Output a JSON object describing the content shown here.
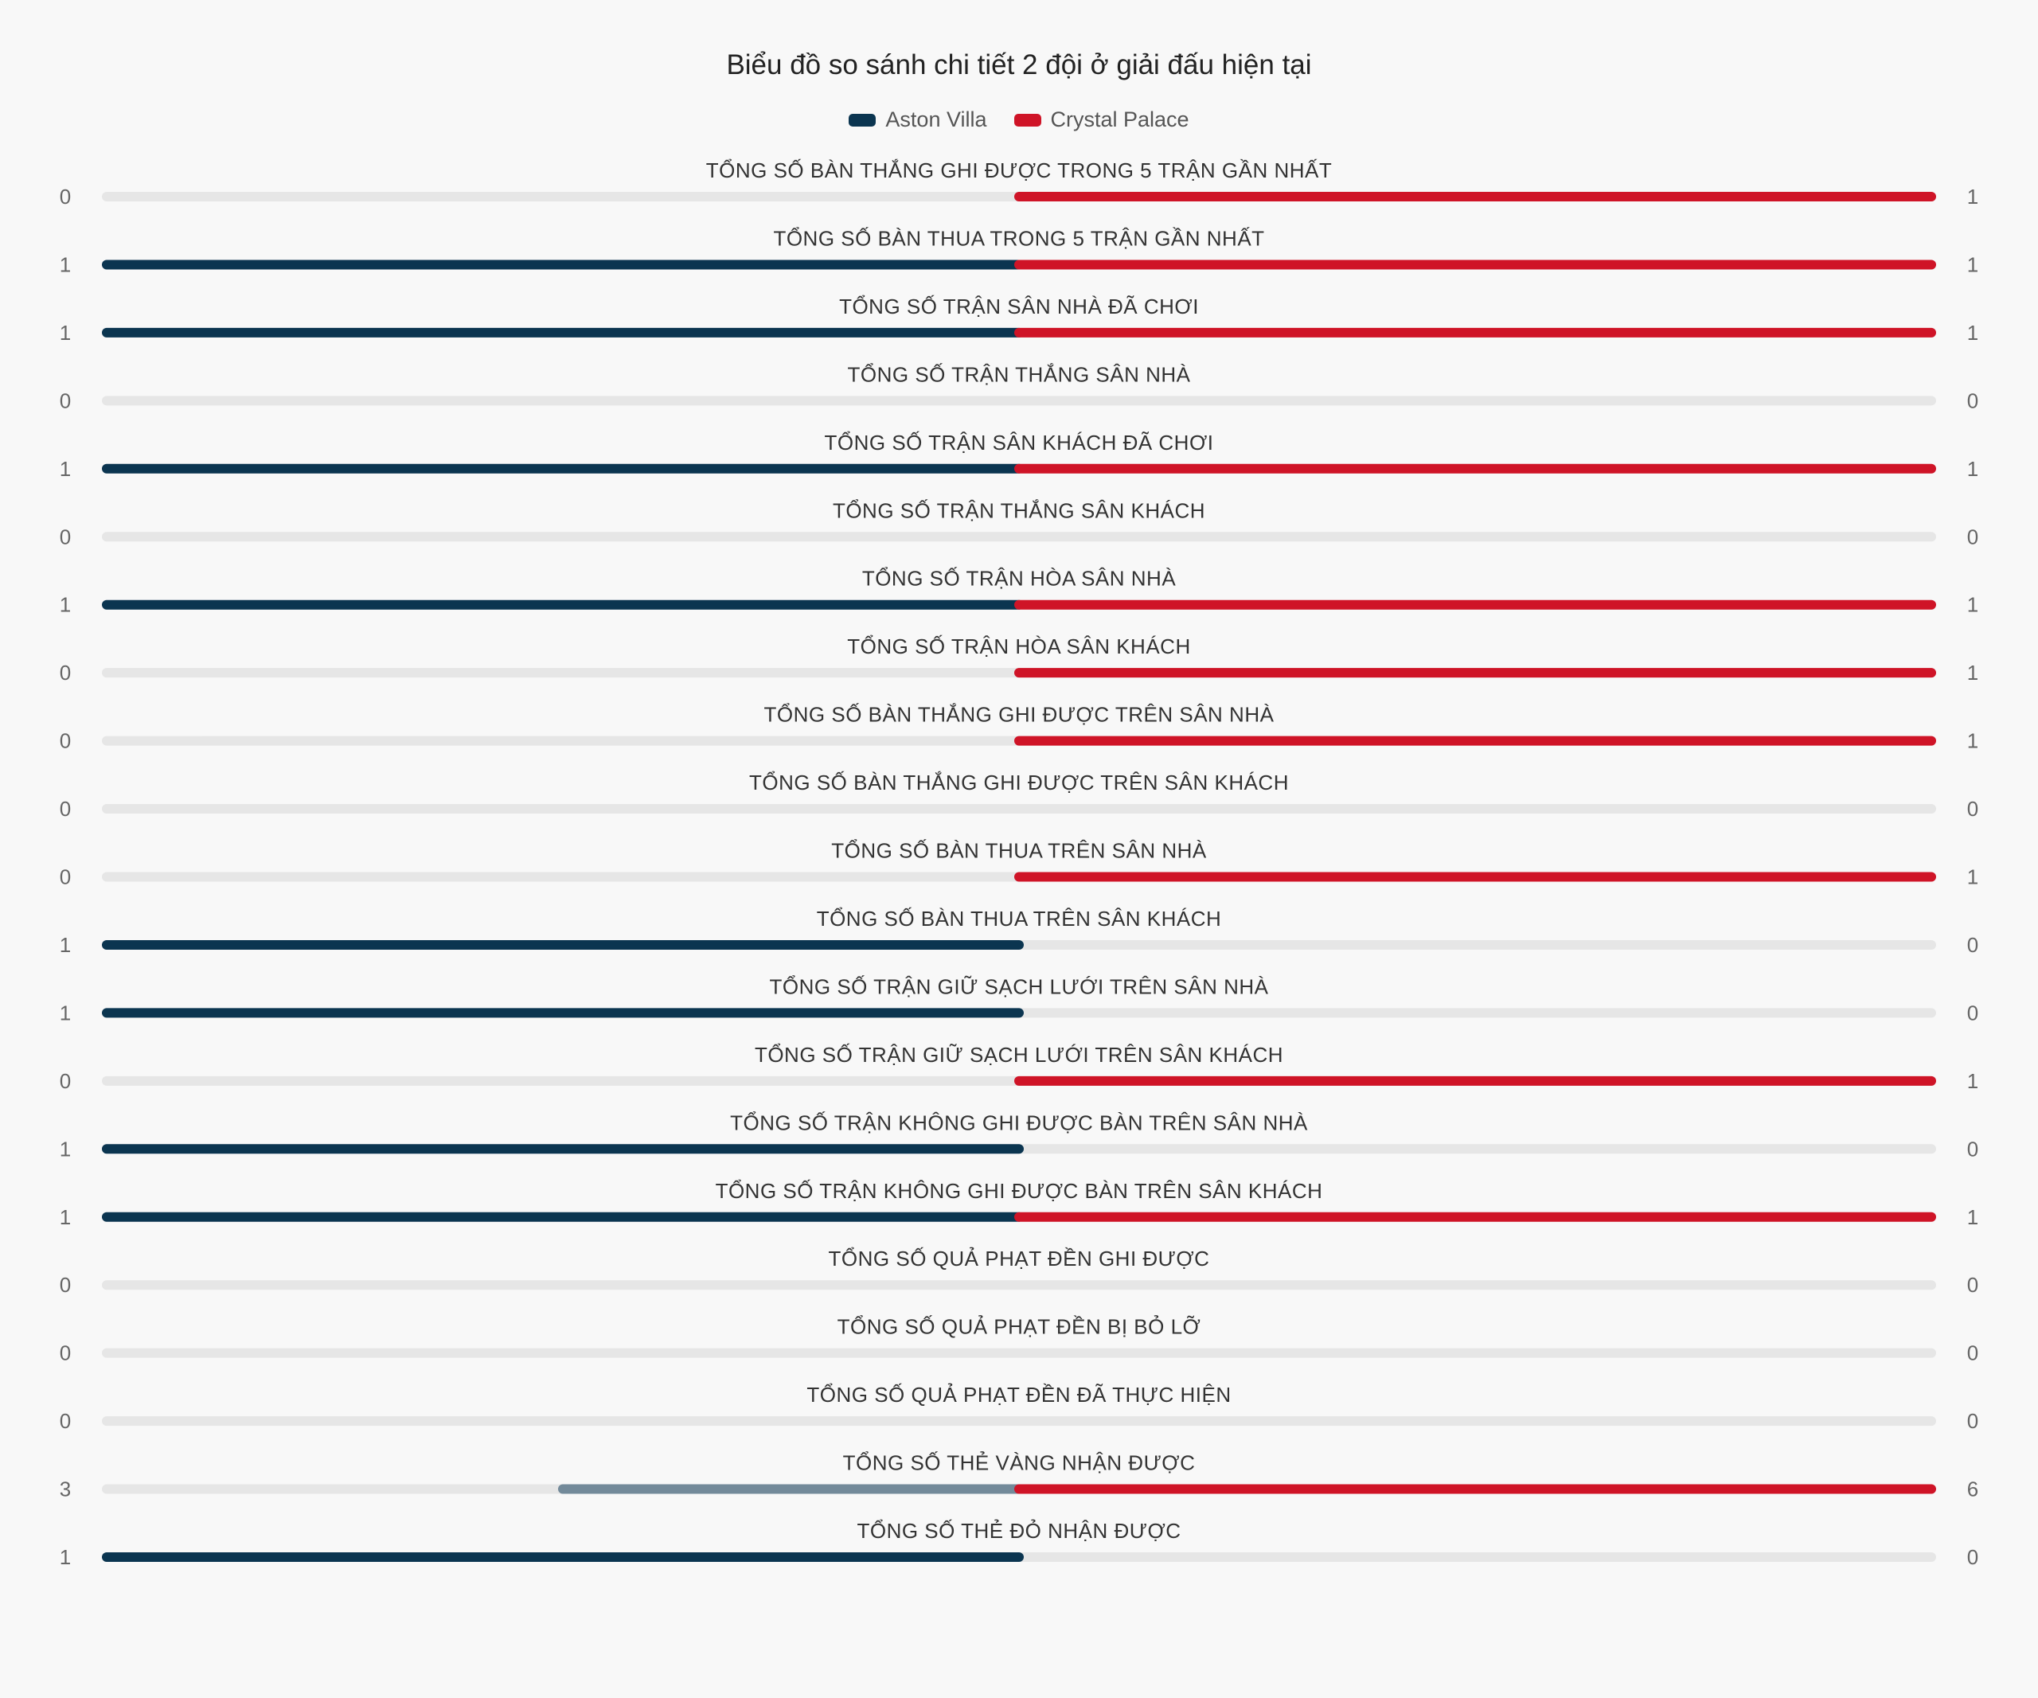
{
  "chart_data": {
    "type": "bar",
    "orientation": "diverging-horizontal",
    "title": "Biểu đồ so sánh chi tiết 2 đội ở giải đấu hiện tại",
    "legend_position": "top-center",
    "series": [
      {
        "name": "Aston Villa",
        "color": "#0b3550"
      },
      {
        "name": "Crystal Palace",
        "color": "#cf1427"
      }
    ],
    "track_color": "#e6e6e6",
    "muted_color": "#738a9a",
    "categories": [
      "TỔNG SỐ BÀN THẮNG GHI ĐƯỢC TRONG 5 TRẬN GẦN NHẤT",
      "TỔNG SỐ BÀN THUA TRONG 5 TRẬN GẦN NHẤT",
      "TỔNG SỐ TRẬN SÂN NHÀ ĐÃ CHƠI",
      "TỔNG SỐ TRẬN THẮNG SÂN NHÀ",
      "TỔNG SỐ TRẬN SÂN KHÁCH ĐÃ CHƠI",
      "TỔNG SỐ TRẬN THẮNG SÂN KHÁCH",
      "TỔNG SỐ TRẬN HÒA SÂN NHÀ",
      "TỔNG SỐ TRẬN HÒA SÂN KHÁCH",
      "TỔNG SỐ BÀN THẮNG GHI ĐƯỢC TRÊN SÂN NHÀ",
      "TỔNG SỐ BÀN THẮNG GHI ĐƯỢC TRÊN SÂN KHÁCH",
      "TỔNG SỐ BÀN THUA TRÊN SÂN NHÀ",
      "TỔNG SỐ BÀN THUA TRÊN SÂN KHÁCH",
      "TỔNG SỐ TRẬN GIỮ SẠCH LƯỚI TRÊN SÂN NHÀ",
      "TỔNG SỐ TRẬN GIỮ SẠCH LƯỚI TRÊN SÂN KHÁCH",
      "TỔNG SỐ TRẬN KHÔNG GHI ĐƯỢC BÀN TRÊN SÂN NHÀ",
      "TỔNG SỐ TRẬN KHÔNG GHI ĐƯỢC BÀN TRÊN SÂN KHÁCH",
      "TỔNG SỐ QUẢ PHẠT ĐỀN GHI ĐƯỢC",
      "TỔNG SỐ QUẢ PHẠT ĐỀN BỊ BỎ LỠ",
      "TỔNG SỐ QUẢ PHẠT ĐỀN ĐÃ THỰC HIỆN",
      "TỔNG SỐ THẺ VÀNG NHẬN ĐƯỢC",
      "TỔNG SỐ THẺ ĐỎ NHẬN ĐƯỢC"
    ],
    "values_aston_villa": [
      0,
      1,
      1,
      0,
      1,
      0,
      1,
      0,
      0,
      0,
      0,
      1,
      1,
      0,
      1,
      1,
      0,
      0,
      0,
      3,
      1
    ],
    "values_crystal_palace": [
      1,
      1,
      1,
      0,
      1,
      0,
      1,
      1,
      1,
      0,
      1,
      0,
      0,
      1,
      0,
      1,
      0,
      0,
      0,
      6,
      0
    ]
  }
}
